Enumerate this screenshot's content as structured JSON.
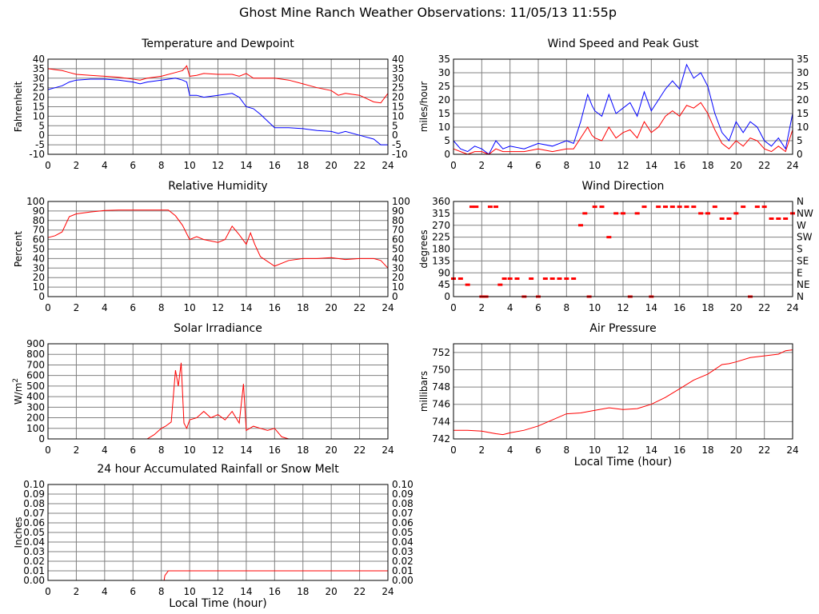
{
  "page": {
    "title": "Ghost Mine Ranch Weather Observations: 11/05/13 11:55p"
  },
  "colors": {
    "red": "#ff0000",
    "blue": "#0000ff",
    "grid": "#808080",
    "axis": "#000000"
  },
  "chart_data": [
    {
      "id": "temperature",
      "type": "line",
      "title": "Temperature and Dewpoint",
      "ylabel": "Fahrenheit",
      "xlabel": "",
      "xlim": [
        0,
        24
      ],
      "ylim": [
        -10,
        40
      ],
      "xticks": [
        "0",
        "2",
        "4",
        "6",
        "8",
        "10",
        "12",
        "14",
        "16",
        "18",
        "20",
        "22",
        "24"
      ],
      "yticks": [
        "40",
        "35",
        "30",
        "25",
        "20",
        "15",
        "10",
        "5",
        "0",
        "-5",
        "-10"
      ],
      "right_ticks": [
        "40",
        "35",
        "30",
        "25",
        "20",
        "15",
        "10",
        "5",
        "0",
        "-5",
        "-10"
      ],
      "grid": true,
      "series": [
        {
          "name": "Temperature",
          "color": "#ff0000",
          "x": [
            0,
            0.5,
            1,
            1.5,
            2,
            3,
            4,
            5,
            6,
            6.5,
            7,
            8,
            9,
            9.5,
            9.8,
            10,
            10.5,
            11,
            12,
            13,
            13.5,
            14,
            14.5,
            15,
            16,
            17,
            18,
            19,
            20,
            20.5,
            21,
            22,
            23,
            23.5,
            24
          ],
          "values": [
            35,
            34.5,
            34,
            33,
            32,
            31.5,
            31,
            30.5,
            29.5,
            29,
            30,
            31,
            33,
            34,
            36.5,
            31,
            31.5,
            32.5,
            32,
            32,
            31,
            32.5,
            30,
            30,
            30,
            29,
            27,
            25,
            23.5,
            21,
            22,
            21,
            17.5,
            17,
            22
          ]
        },
        {
          "name": "Dewpoint",
          "color": "#0000ff",
          "x": [
            0,
            0.5,
            1,
            1.5,
            2,
            3,
            4,
            5,
            6,
            6.5,
            7,
            8,
            9,
            9.5,
            9.8,
            10,
            10.5,
            11,
            12,
            13,
            13.5,
            14,
            14.5,
            15,
            16,
            17,
            18,
            19,
            20,
            20.5,
            21,
            22,
            23,
            23.5,
            24
          ],
          "values": [
            24,
            25,
            26,
            28,
            29,
            29.5,
            29.5,
            29,
            28,
            27,
            28,
            29,
            30,
            29,
            28,
            21,
            21,
            20,
            21,
            22,
            20,
            15,
            14,
            11,
            4,
            4,
            3.5,
            2.5,
            2,
            1,
            2,
            0,
            -2,
            -5,
            -5
          ]
        }
      ]
    },
    {
      "id": "wind-speed",
      "type": "line",
      "title": "Wind Speed and Peak Gust",
      "ylabel": "miles/hour",
      "xlabel": "",
      "xlim": [
        0,
        24
      ],
      "ylim": [
        0,
        35
      ],
      "xticks": [
        "0",
        "2",
        "4",
        "6",
        "8",
        "10",
        "12",
        "14",
        "16",
        "18",
        "20",
        "22",
        "24"
      ],
      "yticks": [
        "35",
        "30",
        "25",
        "20",
        "15",
        "10",
        "5",
        "0"
      ],
      "right_ticks": [
        "35",
        "30",
        "25",
        "20",
        "15",
        "10",
        "5",
        "0"
      ],
      "grid": true,
      "series": [
        {
          "name": "Peak Gust",
          "color": "#0000ff",
          "x": [
            0,
            0.5,
            1,
            1.5,
            2,
            2.5,
            3,
            3.5,
            4,
            5,
            6,
            7,
            8,
            8.5,
            9,
            9.5,
            9.8,
            10,
            10.5,
            11,
            11.5,
            12,
            12.5,
            13,
            13.5,
            14,
            14.5,
            15,
            15.5,
            16,
            16.5,
            17,
            17.5,
            18,
            18.5,
            19,
            19.5,
            20,
            20.5,
            21,
            21.5,
            22,
            22.5,
            23,
            23.5,
            24
          ],
          "values": [
            5,
            2,
            1,
            3,
            2,
            0,
            5,
            2,
            3,
            2,
            4,
            3,
            5,
            4,
            12,
            22,
            18,
            16,
            14,
            22,
            15,
            17,
            19,
            14,
            23,
            16,
            20,
            24,
            27,
            24,
            33,
            28,
            30,
            25,
            15,
            8,
            5,
            12,
            8,
            12,
            10,
            5,
            3,
            6,
            2,
            15
          ]
        },
        {
          "name": "Wind Speed",
          "color": "#ff0000",
          "x": [
            0,
            0.5,
            1,
            1.5,
            2,
            2.5,
            3,
            3.5,
            4,
            5,
            6,
            7,
            8,
            8.5,
            9,
            9.5,
            9.8,
            10,
            10.5,
            11,
            11.5,
            12,
            12.5,
            13,
            13.5,
            14,
            14.5,
            15,
            15.5,
            16,
            16.5,
            17,
            17.5,
            18,
            18.5,
            19,
            19.5,
            20,
            20.5,
            21,
            21.5,
            22,
            22.5,
            23,
            23.5,
            24
          ],
          "values": [
            2,
            1,
            0,
            1,
            1,
            0,
            2,
            1,
            1,
            1,
            2,
            1,
            2,
            2,
            6,
            10,
            7,
            6,
            5,
            10,
            6,
            8,
            9,
            6,
            12,
            8,
            10,
            14,
            16,
            14,
            18,
            17,
            19,
            15,
            9,
            4,
            2,
            5,
            3,
            6,
            5,
            2,
            1,
            3,
            1,
            9
          ]
        }
      ]
    },
    {
      "id": "humidity",
      "type": "line",
      "title": "Relative Humidity",
      "ylabel": "Percent",
      "xlabel": "",
      "xlim": [
        0,
        24
      ],
      "ylim": [
        0,
        100
      ],
      "xticks": [
        "0",
        "2",
        "4",
        "6",
        "8",
        "10",
        "12",
        "14",
        "16",
        "18",
        "20",
        "22",
        "24"
      ],
      "yticks": [
        "100",
        "90",
        "80",
        "70",
        "60",
        "50",
        "40",
        "30",
        "20",
        "10",
        "0"
      ],
      "right_ticks": [
        "100",
        "90",
        "80",
        "70",
        "60",
        "50",
        "40",
        "30",
        "20",
        "10",
        "0"
      ],
      "grid": true,
      "series": [
        {
          "name": "Relative Humidity",
          "color": "#ff0000",
          "x": [
            0,
            0.5,
            1,
            1.5,
            2,
            3,
            4,
            5,
            6,
            7,
            8,
            8.5,
            9,
            9.5,
            10,
            10.5,
            11,
            12,
            12.5,
            13,
            13.5,
            14,
            14.3,
            14.6,
            15,
            16,
            17,
            18,
            19,
            20,
            21,
            22,
            23,
            23.5,
            24
          ],
          "values": [
            62,
            64,
            68,
            84,
            87,
            89,
            90.5,
            91,
            91,
            91,
            91,
            91,
            85,
            75,
            60,
            63,
            60,
            57,
            60,
            74,
            65,
            55,
            67,
            55,
            42,
            32,
            38,
            40,
            40,
            41,
            39,
            40,
            40,
            38,
            30
          ]
        }
      ]
    },
    {
      "id": "wind-direction",
      "type": "scatter",
      "title": "Wind Direction",
      "ylabel": "degrees",
      "xlabel": "",
      "xlim": [
        0,
        24
      ],
      "ylim": [
        0,
        360
      ],
      "xticks": [
        "0",
        "2",
        "4",
        "6",
        "8",
        "10",
        "12",
        "14",
        "16",
        "18",
        "20",
        "22",
        "24"
      ],
      "yticks": [
        "360",
        "315",
        "270",
        "225",
        "180",
        "135",
        "90",
        "45",
        "0"
      ],
      "right_ticks": [
        "N",
        "NW",
        "W",
        "SW",
        "S",
        "SE",
        "E",
        "NE",
        "N"
      ],
      "grid": true,
      "series": [
        {
          "name": "Wind Direction",
          "color": "#ff0000",
          "x": [
            0,
            0.5,
            1,
            1.3,
            1.6,
            2,
            2.3,
            2.6,
            3,
            3.3,
            3.6,
            4,
            4.5,
            5,
            5.5,
            6,
            6.5,
            7,
            7.5,
            8,
            8.5,
            9,
            9.3,
            9.6,
            10,
            10.5,
            11,
            11.5,
            12,
            12.5,
            13,
            13.5,
            14,
            14.5,
            15,
            15.5,
            16,
            16.5,
            17,
            17.5,
            18,
            18.5,
            19,
            19.5,
            20,
            20.5,
            21,
            21.5,
            22,
            22.5,
            23,
            23.5,
            24
          ],
          "values": [
            68,
            68,
            45,
            340,
            340,
            0,
            0,
            340,
            340,
            45,
            68,
            68,
            68,
            0,
            68,
            0,
            68,
            68,
            68,
            68,
            68,
            270,
            315,
            0,
            340,
            340,
            225,
            315,
            315,
            0,
            315,
            340,
            0,
            340,
            340,
            340,
            340,
            340,
            340,
            315,
            315,
            340,
            295,
            295,
            315,
            340,
            0,
            340,
            340,
            295,
            295,
            295,
            315
          ]
        }
      ]
    },
    {
      "id": "solar",
      "type": "line",
      "title": "Solar Irradiance",
      "ylabel": "W/m",
      "ylabel_sup": "2",
      "xlabel": "",
      "xlim": [
        0,
        24
      ],
      "ylim": [
        0,
        900
      ],
      "xticks": [
        "0",
        "2",
        "4",
        "6",
        "8",
        "10",
        "12",
        "14",
        "16",
        "18",
        "20",
        "22",
        "24"
      ],
      "yticks": [
        "900",
        "800",
        "700",
        "600",
        "500",
        "400",
        "300",
        "200",
        "100",
        "0"
      ],
      "right_ticks": [],
      "grid": true,
      "series": [
        {
          "name": "Solar Irradiance",
          "color": "#ff0000",
          "x": [
            0,
            6,
            7,
            7.5,
            8,
            8.3,
            8.7,
            9,
            9.2,
            9.4,
            9.6,
            9.8,
            10,
            10.5,
            11,
            11.5,
            12,
            12.5,
            13,
            13.5,
            13.8,
            14,
            14.5,
            15,
            15.5,
            16,
            16.5,
            17,
            18,
            20,
            22,
            24
          ],
          "values": [
            0,
            0,
            0,
            40,
            100,
            120,
            160,
            650,
            500,
            720,
            150,
            100,
            180,
            200,
            260,
            200,
            230,
            180,
            260,
            150,
            520,
            80,
            120,
            100,
            80,
            100,
            20,
            0,
            0,
            0,
            0,
            0
          ]
        }
      ]
    },
    {
      "id": "pressure",
      "type": "line",
      "title": "Air Pressure",
      "ylabel": "millibars",
      "xlabel": "Local Time (hour)",
      "xlim": [
        0,
        24
      ],
      "ylim": [
        742,
        753
      ],
      "xticks": [
        "0",
        "2",
        "4",
        "6",
        "8",
        "10",
        "12",
        "14",
        "16",
        "18",
        "20",
        "22",
        "24"
      ],
      "yticks": [
        "752",
        "750",
        "748",
        "746",
        "744",
        "742"
      ],
      "yvals": [
        752,
        750,
        748,
        746,
        744,
        742
      ],
      "right_ticks": [],
      "grid": true,
      "series": [
        {
          "name": "Air Pressure",
          "color": "#ff0000",
          "x": [
            0,
            1,
            2,
            3,
            3.5,
            4,
            5,
            6,
            7,
            8,
            9,
            10,
            11,
            12,
            13,
            14,
            15,
            16,
            17,
            18,
            19,
            19.5,
            20,
            21,
            22,
            23,
            23.5,
            24
          ],
          "values": [
            743,
            743,
            742.9,
            742.6,
            742.5,
            742.7,
            743,
            743.5,
            744.2,
            744.9,
            745,
            745.3,
            745.6,
            745.4,
            745.5,
            746,
            746.8,
            747.8,
            748.8,
            749.5,
            750.6,
            750.7,
            750.9,
            751.4,
            751.6,
            751.8,
            752.2,
            752.3
          ]
        }
      ]
    },
    {
      "id": "rainfall",
      "type": "line",
      "title": "24 hour Accumulated Rainfall or Snow Melt",
      "ylabel": "Inches",
      "xlabel": "Local Time (hour)",
      "xlim": [
        0,
        24
      ],
      "ylim": [
        0,
        0.1
      ],
      "xticks": [
        "0",
        "2",
        "4",
        "6",
        "8",
        "10",
        "12",
        "14",
        "16",
        "18",
        "20",
        "22",
        "24"
      ],
      "yticks": [
        "0.10",
        "0.09",
        "0.08",
        "0.07",
        "0.06",
        "0.05",
        "0.04",
        "0.03",
        "0.02",
        "0.01",
        "0.00"
      ],
      "right_ticks": [
        "0.10",
        "0.09",
        "0.08",
        "0.07",
        "0.06",
        "0.05",
        "0.04",
        "0.03",
        "0.02",
        "0.01",
        "0.00"
      ],
      "grid": true,
      "series": [
        {
          "name": "Rainfall",
          "color": "#ff0000",
          "x": [
            0,
            8.2,
            8.25,
            8.5,
            24
          ],
          "values": [
            0,
            0,
            0.005,
            0.01,
            0.01
          ]
        }
      ]
    }
  ]
}
